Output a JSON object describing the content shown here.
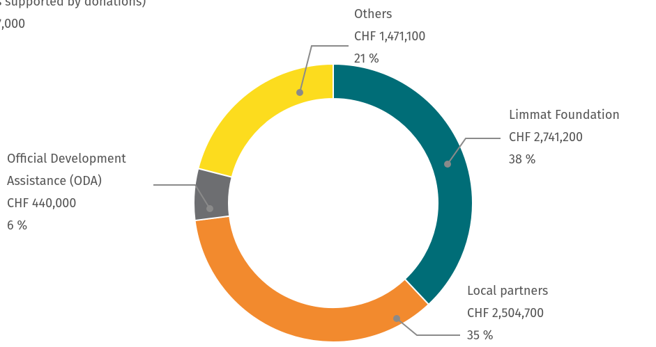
{
  "chart_data": {
    "type": "donut",
    "title": "s supported by donations)",
    "subtitle": "7,000",
    "categories": [
      "Limmat Foundation",
      "Local partners",
      "Official Development Assistance (ODA)",
      "Others"
    ],
    "values": [
      38,
      35,
      6,
      21
    ],
    "value_labels": [
      "38 %",
      "35 %",
      "6 %",
      "21 %"
    ],
    "amount_labels": [
      "CHF 2,741,200",
      "CHF 2,504,700",
      "CHF 440,000",
      "CHF 1,471,100"
    ],
    "colors": [
      "#006d77",
      "#f28a2e",
      "#6d6e71",
      "#fcdc1e"
    ]
  }
}
